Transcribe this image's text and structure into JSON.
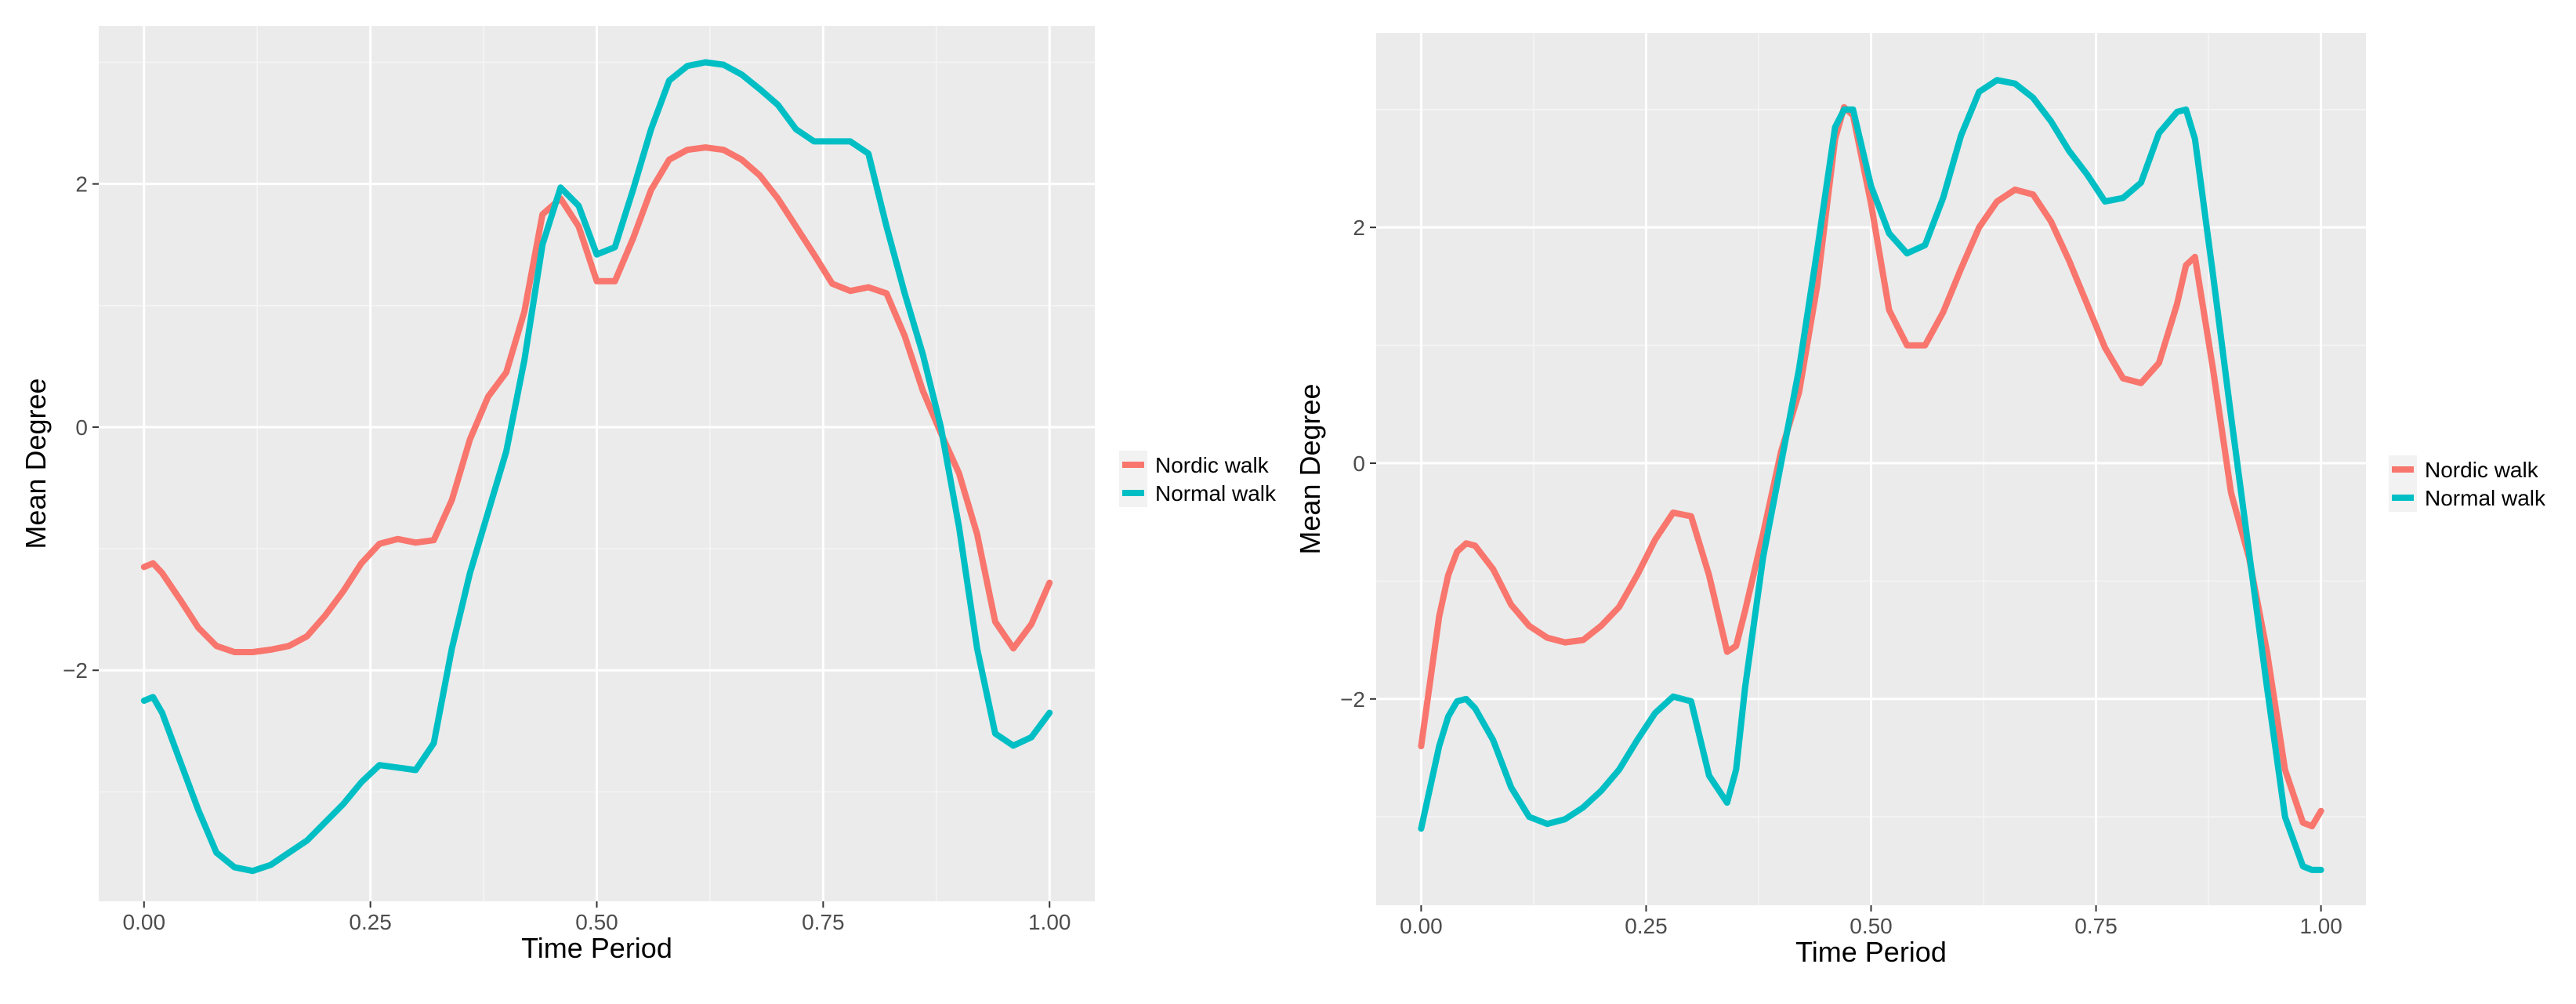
{
  "chart_data": [
    {
      "type": "line",
      "title": "",
      "xlabel": "Time Period",
      "ylabel": "Mean Degree",
      "xlim": [
        -0.05,
        1.05
      ],
      "ylim": [
        -3.9,
        3.3
      ],
      "x_ticks": [
        0.0,
        0.25,
        0.5,
        0.75,
        1.0
      ],
      "x_tick_labels": [
        "0.00",
        "0.25",
        "0.50",
        "0.75",
        "1.00"
      ],
      "y_ticks": [
        -2,
        0,
        2
      ],
      "y_tick_labels": [
        "−2",
        "0",
        "2"
      ],
      "grid": true,
      "legend_position": "right",
      "series": [
        {
          "name": "Nordic walk",
          "color": "#F8766D",
          "x": [
            0.0,
            0.01,
            0.02,
            0.04,
            0.06,
            0.08,
            0.1,
            0.12,
            0.14,
            0.16,
            0.18,
            0.2,
            0.22,
            0.24,
            0.26,
            0.28,
            0.3,
            0.32,
            0.34,
            0.36,
            0.38,
            0.4,
            0.42,
            0.44,
            0.46,
            0.48,
            0.5,
            0.52,
            0.54,
            0.56,
            0.58,
            0.6,
            0.62,
            0.64,
            0.66,
            0.68,
            0.7,
            0.72,
            0.74,
            0.76,
            0.78,
            0.8,
            0.82,
            0.84,
            0.86,
            0.88,
            0.9,
            0.92,
            0.94,
            0.96,
            0.98,
            1.0
          ],
          "y": [
            -1.15,
            -1.12,
            -1.2,
            -1.42,
            -1.65,
            -1.8,
            -1.85,
            -1.85,
            -1.83,
            -1.8,
            -1.72,
            -1.55,
            -1.35,
            -1.12,
            -0.96,
            -0.92,
            -0.95,
            -0.93,
            -0.6,
            -0.1,
            0.25,
            0.45,
            0.95,
            1.75,
            1.88,
            1.65,
            1.2,
            1.2,
            1.55,
            1.95,
            2.2,
            2.28,
            2.3,
            2.28,
            2.2,
            2.07,
            1.88,
            1.65,
            1.42,
            1.18,
            1.12,
            1.15,
            1.1,
            0.75,
            0.3,
            -0.05,
            -0.38,
            -0.88,
            -1.6,
            -1.82,
            -1.62,
            -1.28
          ]
        },
        {
          "name": "Normal walk",
          "color": "#00BFC4",
          "x": [
            0.0,
            0.01,
            0.02,
            0.04,
            0.06,
            0.08,
            0.1,
            0.12,
            0.14,
            0.16,
            0.18,
            0.2,
            0.22,
            0.24,
            0.26,
            0.28,
            0.3,
            0.32,
            0.34,
            0.36,
            0.38,
            0.4,
            0.42,
            0.44,
            0.46,
            0.48,
            0.5,
            0.52,
            0.54,
            0.56,
            0.58,
            0.6,
            0.62,
            0.64,
            0.66,
            0.68,
            0.7,
            0.72,
            0.74,
            0.76,
            0.78,
            0.8,
            0.82,
            0.84,
            0.86,
            0.88,
            0.9,
            0.92,
            0.94,
            0.96,
            0.98,
            1.0
          ],
          "y": [
            -2.25,
            -2.22,
            -2.35,
            -2.75,
            -3.15,
            -3.5,
            -3.62,
            -3.65,
            -3.6,
            -3.5,
            -3.4,
            -3.25,
            -3.1,
            -2.92,
            -2.78,
            -2.8,
            -2.82,
            -2.6,
            -1.82,
            -1.2,
            -0.7,
            -0.2,
            0.55,
            1.5,
            1.97,
            1.82,
            1.42,
            1.48,
            1.95,
            2.45,
            2.85,
            2.97,
            3.0,
            2.98,
            2.9,
            2.78,
            2.65,
            2.45,
            2.35,
            2.35,
            2.35,
            2.25,
            1.65,
            1.1,
            0.6,
            0.0,
            -0.82,
            -1.82,
            -2.52,
            -2.62,
            -2.55,
            -2.35
          ]
        }
      ]
    },
    {
      "type": "line",
      "title": "",
      "xlabel": "Time Period",
      "ylabel": "Mean Degree",
      "xlim": [
        -0.05,
        1.05
      ],
      "ylim": [
        -3.75,
        3.65
      ],
      "x_ticks": [
        0.0,
        0.25,
        0.5,
        0.75,
        1.0
      ],
      "x_tick_labels": [
        "0.00",
        "0.25",
        "0.50",
        "0.75",
        "1.00"
      ],
      "y_ticks": [
        -2,
        0,
        2
      ],
      "y_tick_labels": [
        "−2",
        "0",
        "2"
      ],
      "grid": true,
      "legend_position": "right",
      "series": [
        {
          "name": "Nordic walk",
          "color": "#F8766D",
          "x": [
            0.0,
            0.01,
            0.02,
            0.03,
            0.04,
            0.05,
            0.06,
            0.08,
            0.1,
            0.12,
            0.14,
            0.16,
            0.18,
            0.2,
            0.22,
            0.24,
            0.26,
            0.28,
            0.3,
            0.32,
            0.34,
            0.35,
            0.36,
            0.38,
            0.4,
            0.42,
            0.44,
            0.46,
            0.47,
            0.48,
            0.5,
            0.52,
            0.54,
            0.56,
            0.58,
            0.6,
            0.62,
            0.64,
            0.66,
            0.68,
            0.7,
            0.72,
            0.74,
            0.76,
            0.78,
            0.8,
            0.82,
            0.84,
            0.85,
            0.86,
            0.88,
            0.9,
            0.92,
            0.94,
            0.96,
            0.98,
            0.99,
            1.0
          ],
          "y": [
            -2.4,
            -1.85,
            -1.3,
            -0.95,
            -0.75,
            -0.68,
            -0.7,
            -0.9,
            -1.2,
            -1.38,
            -1.48,
            -1.52,
            -1.5,
            -1.38,
            -1.22,
            -0.95,
            -0.65,
            -0.42,
            -0.45,
            -0.95,
            -1.6,
            -1.55,
            -1.25,
            -0.6,
            0.1,
            0.6,
            1.5,
            2.75,
            3.02,
            2.95,
            2.2,
            1.3,
            1.0,
            1.0,
            1.28,
            1.65,
            2.0,
            2.22,
            2.32,
            2.28,
            2.05,
            1.72,
            1.35,
            0.98,
            0.72,
            0.68,
            0.85,
            1.35,
            1.68,
            1.75,
            0.8,
            -0.25,
            -0.8,
            -1.6,
            -2.6,
            -3.05,
            -3.08,
            -2.95
          ]
        },
        {
          "name": "Normal walk",
          "color": "#00BFC4",
          "x": [
            0.0,
            0.01,
            0.02,
            0.03,
            0.04,
            0.05,
            0.06,
            0.08,
            0.1,
            0.12,
            0.14,
            0.16,
            0.18,
            0.2,
            0.22,
            0.24,
            0.26,
            0.28,
            0.3,
            0.32,
            0.34,
            0.35,
            0.36,
            0.38,
            0.4,
            0.42,
            0.44,
            0.46,
            0.47,
            0.48,
            0.5,
            0.52,
            0.54,
            0.56,
            0.58,
            0.6,
            0.62,
            0.64,
            0.66,
            0.68,
            0.7,
            0.72,
            0.74,
            0.76,
            0.78,
            0.8,
            0.82,
            0.84,
            0.85,
            0.86,
            0.88,
            0.9,
            0.92,
            0.94,
            0.96,
            0.98,
            0.99,
            1.0
          ],
          "y": [
            -3.1,
            -2.75,
            -2.4,
            -2.15,
            -2.02,
            -2.0,
            -2.08,
            -2.35,
            -2.75,
            -3.0,
            -3.06,
            -3.02,
            -2.92,
            -2.78,
            -2.6,
            -2.35,
            -2.12,
            -1.98,
            -2.02,
            -2.65,
            -2.88,
            -2.6,
            -1.9,
            -0.8,
            0.0,
            0.8,
            1.8,
            2.85,
            3.0,
            3.0,
            2.35,
            1.95,
            1.78,
            1.85,
            2.25,
            2.78,
            3.15,
            3.25,
            3.22,
            3.1,
            2.9,
            2.65,
            2.45,
            2.22,
            2.25,
            2.38,
            2.8,
            2.98,
            3.0,
            2.75,
            1.6,
            0.4,
            -0.75,
            -1.9,
            -3.0,
            -3.42,
            -3.45,
            -3.45
          ]
        }
      ]
    }
  ]
}
